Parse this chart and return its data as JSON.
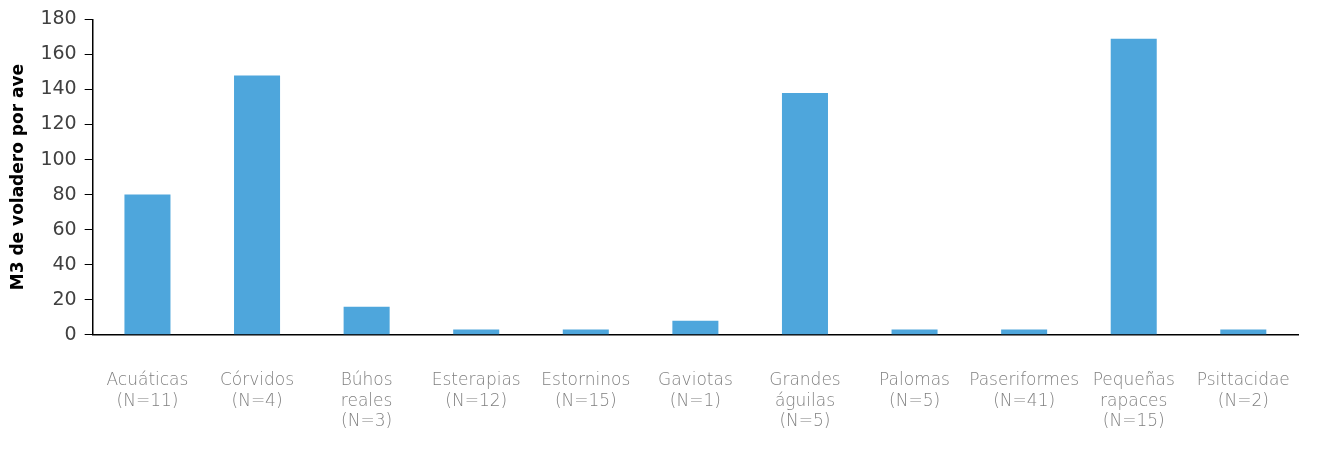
{
  "chart_data": {
    "type": "bar",
    "ylabel": "M3 de voladero por ave",
    "categories": [
      "Acuáticas\n(N=11)",
      "Córvidos\n(N=4)",
      "Búhos\nreales\n(N=3)",
      "Esterapias\n(N=12)",
      "Estorninos\n(N=15)",
      "Gaviotas\n(N=1)",
      "Grandes\náguilas\n(N=5)",
      "Palomas\n(N=5)",
      "Paseriformes\n(N=41)",
      "Pequeñas\nrapaces\n(N=15)",
      "Psittacidae\n(N=2)"
    ],
    "values": [
      80,
      148,
      16,
      3,
      3,
      8,
      138,
      3,
      3,
      169,
      3
    ],
    "color": "#4ea6dc",
    "ylim": [
      0,
      180
    ],
    "yticks": [
      0,
      20,
      40,
      60,
      80,
      100,
      120,
      140,
      160,
      180
    ],
    "grid": false,
    "legend": false
  }
}
